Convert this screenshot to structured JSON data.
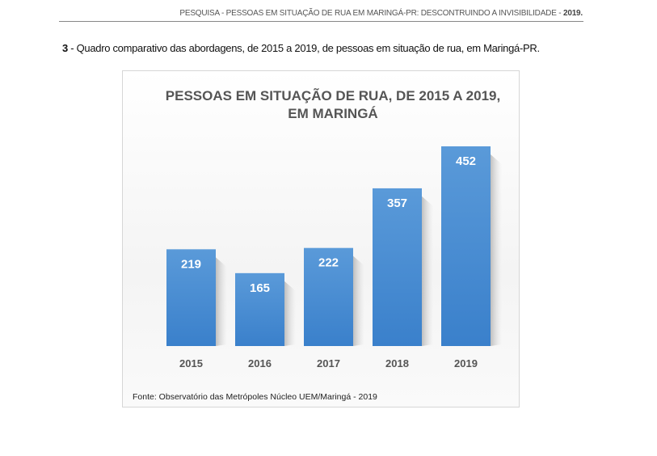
{
  "header": {
    "text": "PESQUISA - PESSOAS EM SITUAÇÃO DE RUA EM MARINGÁ-PR: DESCONTRUINDO A INVISIBILIDADE - ",
    "year": "2019."
  },
  "caption": {
    "number": "3",
    "text": " - Quadro comparativo das abordagens, de 2015 a 2019, de pessoas em situação de rua, em Maringá-PR."
  },
  "chart_data": {
    "type": "bar",
    "title_line1": "PESSOAS EM SITUAÇÃO DE RUA, DE 2015 A 2019,",
    "title_line2": "EM MARINGÁ",
    "categories": [
      "2015",
      "2016",
      "2017",
      "2018",
      "2019"
    ],
    "values": [
      219,
      165,
      222,
      357,
      452
    ],
    "xlabel": "",
    "ylabel": "",
    "ylim": [
      0,
      452
    ],
    "grid": false,
    "bar_color": "#3f86cf",
    "source": "Fonte: Observatório das Metrópoles Núcleo UEM/Maringá - 2019"
  }
}
